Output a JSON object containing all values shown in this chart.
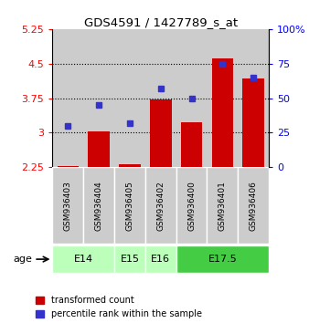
{
  "title": "GDS4591 / 1427789_s_at",
  "samples": [
    "GSM936403",
    "GSM936404",
    "GSM936405",
    "GSM936402",
    "GSM936400",
    "GSM936401",
    "GSM936406"
  ],
  "transformed_count": [
    2.27,
    3.02,
    2.32,
    3.72,
    3.22,
    4.62,
    4.18
  ],
  "percentile_rank": [
    30,
    45,
    32,
    57,
    50,
    75,
    65
  ],
  "bar_bottom": 2.25,
  "ylim_left": [
    2.25,
    5.25
  ],
  "ylim_right": [
    0,
    100
  ],
  "yticks_left": [
    2.25,
    3.0,
    3.75,
    4.5,
    5.25
  ],
  "yticks_right": [
    0,
    25,
    50,
    75,
    100
  ],
  "ytick_labels_left": [
    "2.25",
    "3",
    "3.75",
    "4.5",
    "5.25"
  ],
  "ytick_labels_right": [
    "0",
    "25",
    "50",
    "75",
    "100%"
  ],
  "hlines": [
    3.0,
    3.75,
    4.5
  ],
  "age_groups": [
    {
      "label": "E14",
      "start": 0,
      "end": 1,
      "color": "#ccffcc"
    },
    {
      "label": "E15",
      "start": 2,
      "end": 2,
      "color": "#ccffcc"
    },
    {
      "label": "E16",
      "start": 3,
      "end": 3,
      "color": "#ccffcc"
    },
    {
      "label": "E17.5",
      "start": 4,
      "end": 6,
      "color": "#55dd55"
    }
  ],
  "bar_color": "#cc0000",
  "dot_color": "#3333cc",
  "sample_bg_color": "#cccccc",
  "legend_items": [
    "transformed count",
    "percentile rank within the sample"
  ]
}
